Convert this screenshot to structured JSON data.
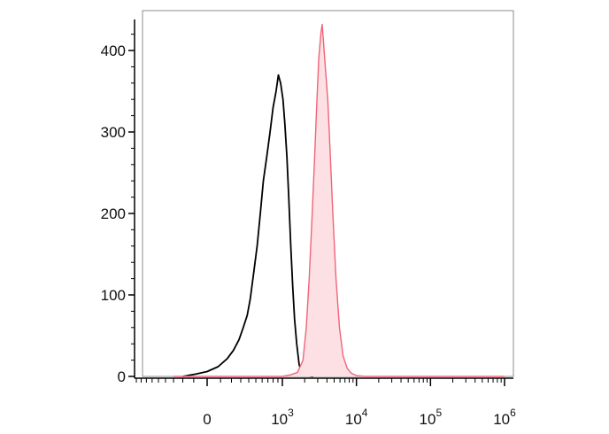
{
  "chart_data": {
    "type": "area",
    "title": "",
    "xlabel": "",
    "ylabel": "",
    "x_scale": "biexponential",
    "x_ticks": [
      {
        "value": 0,
        "base": "0",
        "exp": ""
      },
      {
        "value": 1000,
        "base": "10",
        "exp": "3"
      },
      {
        "value": 10000,
        "base": "10",
        "exp": "4"
      },
      {
        "value": 100000,
        "base": "10",
        "exp": "5"
      },
      {
        "value": 1000000,
        "base": "10",
        "exp": "6"
      }
    ],
    "y_ticks": [
      "0",
      "100",
      "200",
      "300",
      "400"
    ],
    "ylim": [
      0,
      430
    ],
    "grid": false,
    "legend": "none",
    "series": [
      {
        "color": "#000000",
        "fill": "none",
        "points": [
          [
            -200,
            0
          ],
          [
            -80,
            3
          ],
          [
            0,
            6
          ],
          [
            80,
            12
          ],
          [
            160,
            22
          ],
          [
            220,
            32
          ],
          [
            280,
            45
          ],
          [
            330,
            60
          ],
          [
            380,
            75
          ],
          [
            420,
            95
          ],
          [
            470,
            128
          ],
          [
            520,
            160
          ],
          [
            570,
            200
          ],
          [
            620,
            240
          ],
          [
            680,
            270
          ],
          [
            740,
            300
          ],
          [
            800,
            330
          ],
          [
            860,
            350
          ],
          [
            910,
            370
          ],
          [
            960,
            360
          ],
          [
            1020,
            340
          ],
          [
            1080,
            310
          ],
          [
            1150,
            270
          ],
          [
            1220,
            220
          ],
          [
            1300,
            160
          ],
          [
            1380,
            110
          ],
          [
            1460,
            70
          ],
          [
            1560,
            40
          ],
          [
            1680,
            15
          ],
          [
            1800,
            5
          ],
          [
            2000,
            2
          ],
          [
            2600,
            0
          ]
        ]
      },
      {
        "color": "#f06478",
        "fill": "#fce0e3",
        "points": [
          [
            -300,
            0
          ],
          [
            1000,
            0
          ],
          [
            1300,
            2
          ],
          [
            1600,
            5
          ],
          [
            1900,
            20
          ],
          [
            2100,
            60
          ],
          [
            2300,
            120
          ],
          [
            2500,
            190
          ],
          [
            2700,
            260
          ],
          [
            2900,
            330
          ],
          [
            3100,
            390
          ],
          [
            3300,
            420
          ],
          [
            3450,
            432
          ],
          [
            3600,
            410
          ],
          [
            3800,
            380
          ],
          [
            4100,
            340
          ],
          [
            4400,
            280
          ],
          [
            4800,
            200
          ],
          [
            5300,
            120
          ],
          [
            5900,
            60
          ],
          [
            6600,
            25
          ],
          [
            7500,
            10
          ],
          [
            8500,
            4
          ],
          [
            10000,
            1
          ],
          [
            13000,
            0
          ],
          [
            1000000,
            0
          ]
        ]
      }
    ]
  }
}
